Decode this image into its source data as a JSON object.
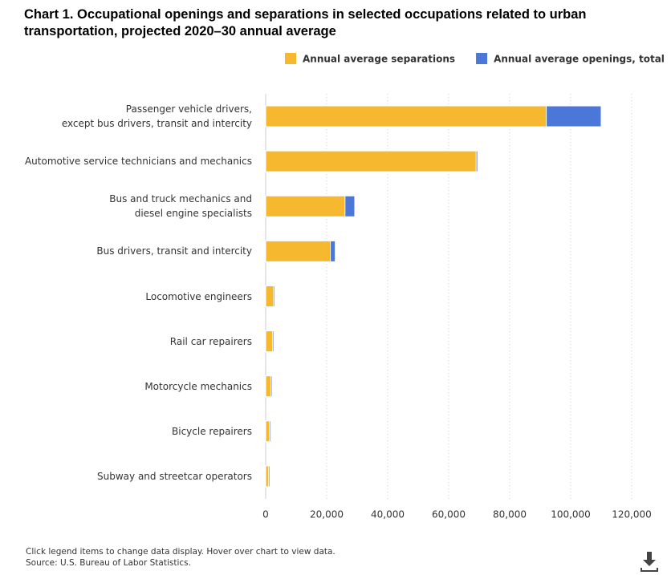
{
  "chart_data": {
    "type": "bar",
    "orientation": "horizontal",
    "title": "Chart 1. Occupational openings and separations in selected occupations related to urban transportation, projected 2020–30 annual average",
    "categories": [
      "Passenger vehicle drivers,\nexcept bus drivers, transit and intercity",
      "Automotive service technicians and mechanics",
      "Bus and truck mechanics and\ndiesel engine specialists",
      "Bus drivers, transit and intercity",
      "Locomotive engineers",
      "Rail car repairers",
      "Motorcycle mechanics",
      "Bicycle repairers",
      "Subway and streetcar operators"
    ],
    "series": [
      {
        "name": "Annual average separations",
        "color": "#f6b82e",
        "values": [
          92000,
          69000,
          26000,
          21200,
          2600,
          2300,
          1700,
          1200,
          1000
        ]
      },
      {
        "name": "Annual average openings, total",
        "color": "#4b78d8",
        "values": [
          110000,
          69500,
          29200,
          22800,
          3000,
          2700,
          2100,
          1600,
          1400
        ]
      }
    ],
    "xlim": [
      0,
      120000
    ],
    "xticks": [
      0,
      {
        "value": 20000,
        "label": "20,000"
      },
      {
        "value": 40000,
        "label": "40,000"
      },
      {
        "value": 60000,
        "label": "60,000"
      },
      {
        "value": 80000,
        "label": "80,000"
      },
      {
        "value": 100000,
        "label": "100,000"
      },
      {
        "value": 120000,
        "label": "120,000"
      }
    ],
    "grid": true,
    "legend": "top-right"
  },
  "footer": {
    "note": "Click legend items to change data display. Hover over chart to view data.",
    "source": "Source: U.S. Bureau of Labor Statistics."
  }
}
